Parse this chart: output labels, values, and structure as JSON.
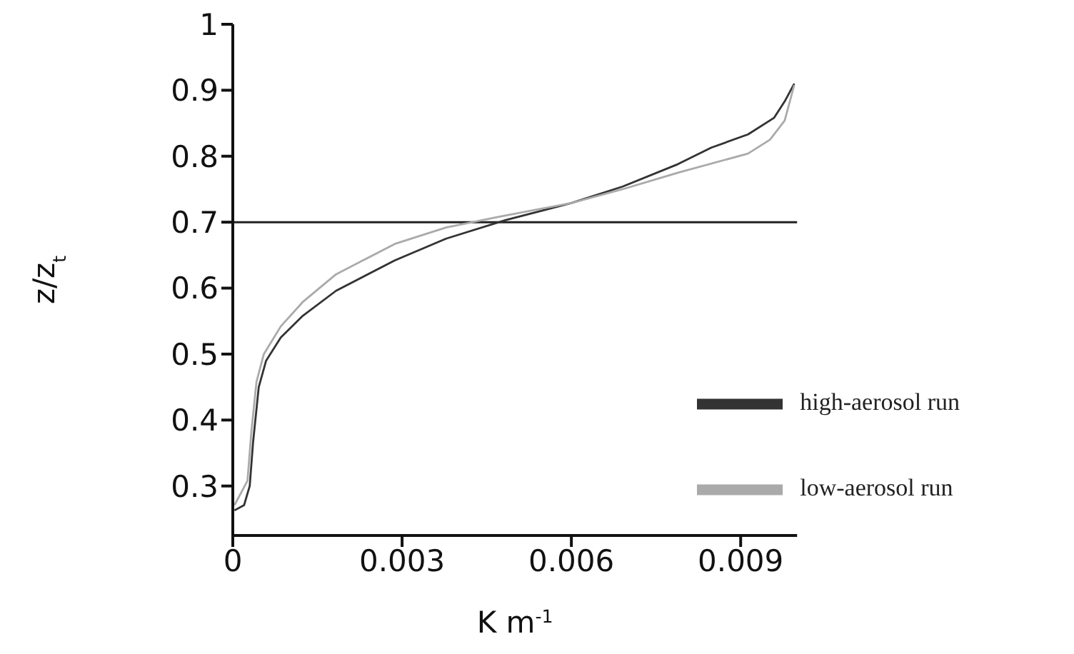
{
  "chart_data": {
    "type": "line",
    "xlabel": "K m$^{-1}$",
    "ylabel": "z/z$_{t}$",
    "xlim": [
      0,
      0.01
    ],
    "xticks": [
      0,
      0.003,
      0.006,
      0.009
    ],
    "ylim": [
      0.225,
      1
    ],
    "yticks": [
      0.3,
      0.4,
      0.5,
      0.6,
      0.7,
      0.8,
      0.9,
      1
    ],
    "grid": false,
    "legend": "right",
    "marker": "none",
    "line_style": "solid",
    "ref_lines": [
      {
        "axis": "y",
        "value": 0.7,
        "color": "#222222"
      }
    ],
    "series": [
      {
        "name": "high-aerosol run",
        "color": "#333333",
        "x": [
          3e-05,
          0.0002,
          0.0003,
          0.00036,
          0.00046,
          0.00059,
          0.00085,
          0.00124,
          0.00183,
          0.00287,
          0.00378,
          0.00483,
          0.006,
          0.00691,
          0.00789,
          0.00848,
          0.00913,
          0.00959,
          0.00978,
          0.00995
        ],
        "values": [
          0.263,
          0.271,
          0.3,
          0.367,
          0.45,
          0.49,
          0.525,
          0.558,
          0.596,
          0.642,
          0.675,
          0.703,
          0.729,
          0.754,
          0.788,
          0.813,
          0.833,
          0.858,
          0.883,
          0.91
        ]
      },
      {
        "name": "low-aerosol run",
        "color": "#aaaaaa",
        "x": [
          3e-05,
          0.00026,
          0.00033,
          0.00042,
          0.00055,
          0.00085,
          0.00124,
          0.00183,
          0.00287,
          0.00378,
          0.0047,
          0.006,
          0.00691,
          0.00789,
          0.00913,
          0.00952,
          0.00978,
          0.00995
        ],
        "values": [
          0.271,
          0.308,
          0.383,
          0.458,
          0.5,
          0.542,
          0.579,
          0.621,
          0.667,
          0.692,
          0.708,
          0.729,
          0.75,
          0.775,
          0.804,
          0.825,
          0.854,
          0.908
        ]
      }
    ]
  }
}
